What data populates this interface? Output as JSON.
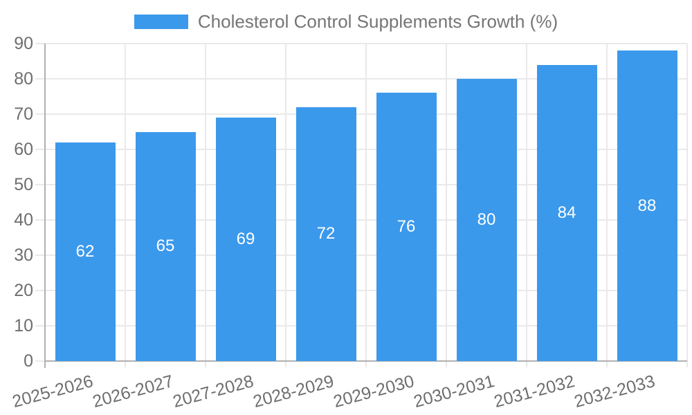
{
  "legend": {
    "series_label": "Cholesterol Control Supplements Growth (%)"
  },
  "chart_data": {
    "type": "bar",
    "title": "Cholesterol Control Supplements Growth (%)",
    "categories": [
      "2025-2026",
      "2026-2027",
      "2027-2028",
      "2028-2029",
      "2029-2030",
      "2030-2031",
      "2031-2032",
      "2032-2033"
    ],
    "values": [
      62,
      65,
      69,
      72,
      76,
      80,
      84,
      88
    ],
    "bar_value_labels": [
      "62",
      "65",
      "69",
      "72",
      "76",
      "80",
      "84",
      "88"
    ],
    "xlabel": "",
    "ylabel": "",
    "ylim": [
      0,
      90
    ],
    "yticks": [
      0,
      10,
      20,
      30,
      40,
      50,
      60,
      70,
      80,
      90
    ],
    "grid": true,
    "legend_position": "top"
  },
  "colors": {
    "bar": "#3b99ec",
    "gridline": "#e9e9e9",
    "axis": "#b0b0b0",
    "tick_label": "#6e6e6e",
    "title": "#757575",
    "bar_label": "#ffffff",
    "background": "#ffffff"
  }
}
